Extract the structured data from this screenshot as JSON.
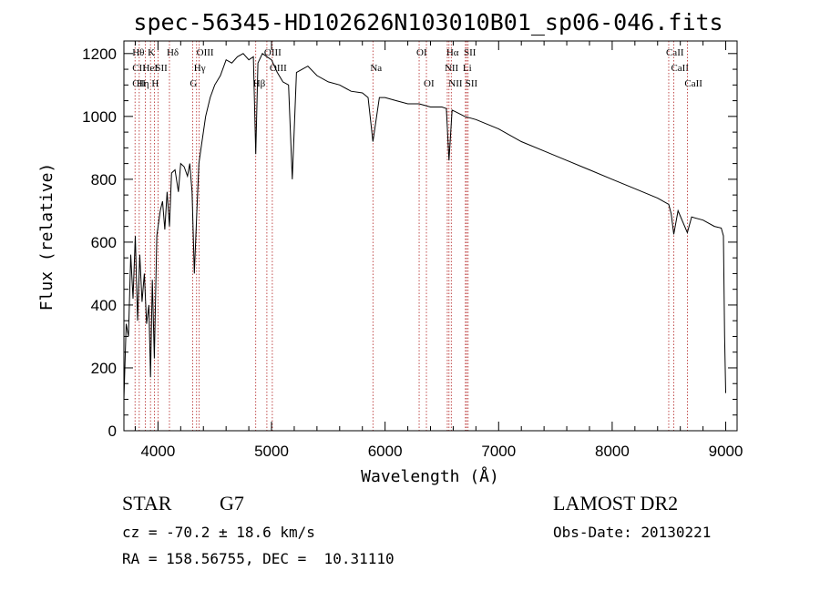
{
  "chart_data": {
    "type": "line",
    "title": "spec-56345-HD102626N103010B01_sp06-046.fits",
    "xlabel": "Wavelength (Å)",
    "ylabel": "Flux (relative)",
    "xlim": [
      3700,
      9100
    ],
    "ylim": [
      0,
      1240
    ],
    "x_ticks": [
      4000,
      5000,
      6000,
      7000,
      8000,
      9000
    ],
    "y_ticks": [
      0,
      200,
      400,
      600,
      800,
      1000,
      1200
    ],
    "grid": false,
    "spectrum": {
      "x": [
        3700,
        3720,
        3740,
        3760,
        3780,
        3800,
        3820,
        3840,
        3860,
        3880,
        3900,
        3920,
        3934,
        3950,
        3968,
        3990,
        4020,
        4040,
        4060,
        4080,
        4101,
        4120,
        4150,
        4180,
        4200,
        4230,
        4260,
        4280,
        4300,
        4320,
        4340,
        4360,
        4380,
        4420,
        4460,
        4500,
        4550,
        4600,
        4650,
        4700,
        4750,
        4800,
        4840,
        4861,
        4880,
        4920,
        4960,
        5000,
        5050,
        5100,
        5150,
        5183,
        5220,
        5270,
        5320,
        5400,
        5500,
        5600,
        5700,
        5800,
        5850,
        5893,
        5950,
        6000,
        6100,
        6200,
        6300,
        6400,
        6500,
        6540,
        6563,
        6590,
        6620,
        6700,
        6800,
        7000,
        7200,
        7400,
        7600,
        7800,
        8000,
        8200,
        8400,
        8498,
        8520,
        8542,
        8580,
        8662,
        8700,
        8800,
        8900,
        8960,
        8980,
        8990,
        9000
      ],
      "y": [
        100,
        340,
        300,
        560,
        420,
        620,
        350,
        560,
        410,
        500,
        340,
        400,
        170,
        480,
        230,
        620,
        700,
        730,
        640,
        760,
        650,
        820,
        830,
        760,
        850,
        840,
        810,
        850,
        760,
        500,
        680,
        850,
        900,
        1000,
        1060,
        1100,
        1130,
        1180,
        1170,
        1190,
        1200,
        1180,
        1190,
        880,
        1170,
        1200,
        1190,
        1180,
        1140,
        1110,
        1100,
        800,
        1140,
        1150,
        1160,
        1130,
        1110,
        1100,
        1080,
        1075,
        1060,
        920,
        1060,
        1060,
        1050,
        1040,
        1040,
        1030,
        1030,
        1025,
        860,
        1020,
        1015,
        1000,
        990,
        960,
        920,
        890,
        860,
        830,
        800,
        770,
        740,
        720,
        690,
        625,
        700,
        630,
        680,
        670,
        650,
        645,
        620,
        300,
        120
      ]
    },
    "lines": [
      {
        "label": "Hθ",
        "x": 3798,
        "row": 0
      },
      {
        "label": "CII",
        "x": 3798,
        "row": 1
      },
      {
        "label": "CII",
        "x": 3798,
        "row": 2
      },
      {
        "label": "K",
        "x": 3934,
        "row": 0
      },
      {
        "label": "HeI",
        "x": 3889,
        "row": 1
      },
      {
        "label": "Hη",
        "x": 3835,
        "row": 2
      },
      {
        "label": "Hδ",
        "x": 4101,
        "row": 0
      },
      {
        "label": "SII",
        "x": 4000,
        "row": 1
      },
      {
        "label": "H",
        "x": 3968,
        "row": 2
      },
      {
        "label": "OIII",
        "x": 4363,
        "row": 0
      },
      {
        "label": "Hγ",
        "x": 4340,
        "row": 1
      },
      {
        "label": "G",
        "x": 4305,
        "row": 2
      },
      {
        "label": "OIII",
        "x": 4959,
        "row": 0
      },
      {
        "label": "OIII",
        "x": 5007,
        "row": 1
      },
      {
        "label": "Hβ",
        "x": 4861,
        "row": 2
      },
      {
        "label": "Na",
        "x": 5893,
        "row": 1
      },
      {
        "label": "OI",
        "x": 6300,
        "row": 0
      },
      {
        "label": "OI",
        "x": 6364,
        "row": 2
      },
      {
        "label": "Hα",
        "x": 6563,
        "row": 0
      },
      {
        "label": "SII",
        "x": 6717,
        "row": 0
      },
      {
        "label": "NII",
        "x": 6548,
        "row": 1
      },
      {
        "label": "Li",
        "x": 6708,
        "row": 1
      },
      {
        "label": "NII",
        "x": 6583,
        "row": 2
      },
      {
        "label": "SII",
        "x": 6731,
        "row": 2
      },
      {
        "label": "CaII",
        "x": 8498,
        "row": 0
      },
      {
        "label": "CaII",
        "x": 8542,
        "row": 1
      },
      {
        "label": "CaII",
        "x": 8662,
        "row": 2
      }
    ]
  },
  "info": {
    "object_class": "STAR",
    "subclass": "G7",
    "cz": "cz = -70.2 ± 18.6 km/s",
    "coords": "RA = 158.56755, DEC =  10.31110",
    "survey": "LAMOST DR2",
    "obs_date": "Obs-Date: 20130221"
  },
  "colors": {
    "spectrum": "#000000",
    "line_markers": "#b22222"
  }
}
